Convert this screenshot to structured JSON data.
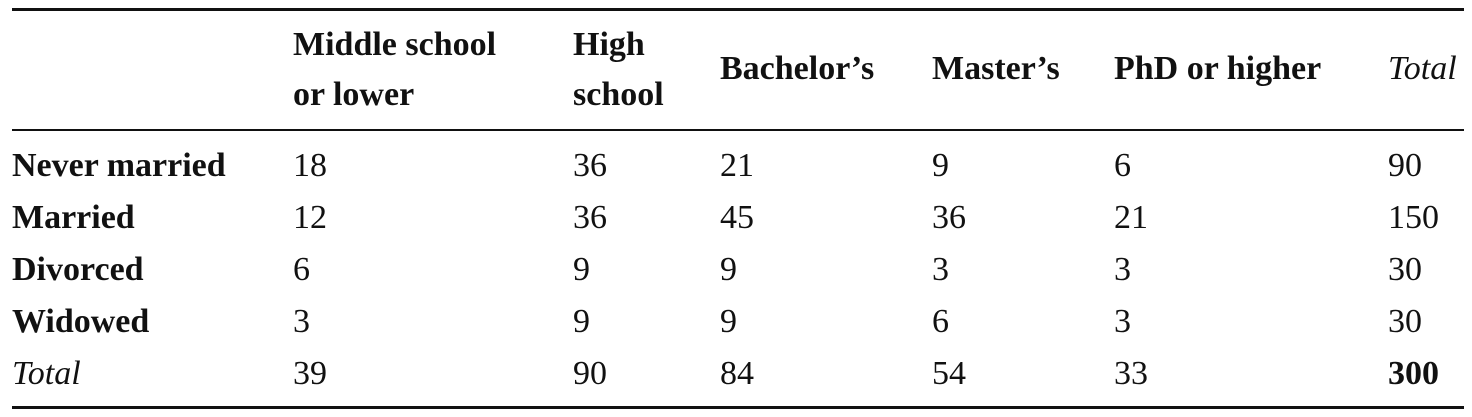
{
  "table": {
    "columns": [
      [
        "Middle school",
        "or lower"
      ],
      [
        "High",
        "school"
      ],
      [
        "Bachelor’s"
      ],
      [
        "Master’s"
      ],
      [
        "PhD or higher"
      ],
      [
        "Total"
      ]
    ],
    "rows": [
      {
        "label": "Never married",
        "values": [
          "18",
          "36",
          "21",
          "9",
          "6",
          "90"
        ]
      },
      {
        "label": "Married",
        "values": [
          "12",
          "36",
          "45",
          "36",
          "21",
          "150"
        ]
      },
      {
        "label": "Divorced",
        "values": [
          "6",
          "9",
          "9",
          "3",
          "3",
          "30"
        ]
      },
      {
        "label": "Widowed",
        "values": [
          "3",
          "9",
          "9",
          "6",
          "3",
          "30"
        ]
      },
      {
        "label": "Total",
        "values": [
          "39",
          "90",
          "84",
          "54",
          "33",
          "300"
        ]
      }
    ]
  }
}
